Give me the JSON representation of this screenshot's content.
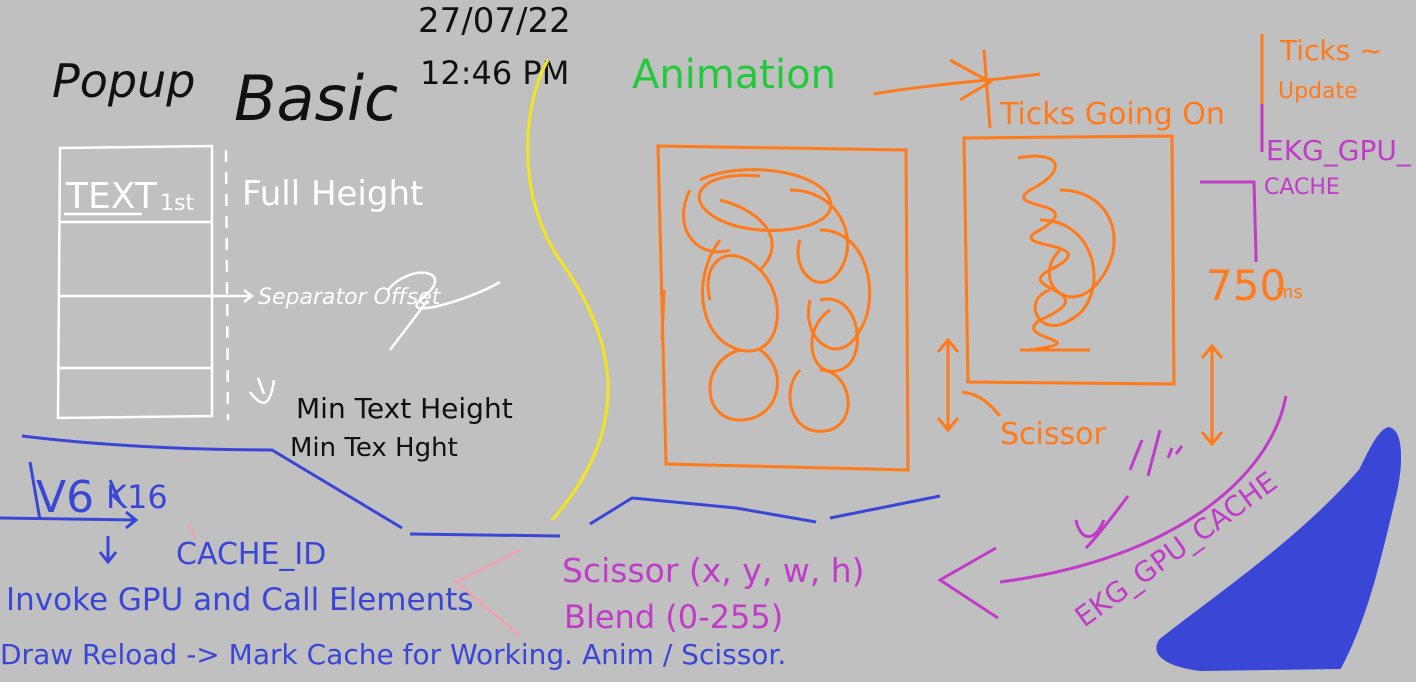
{
  "colors": {
    "background": "#c0c0c0",
    "black": "#111111",
    "white": "#ffffff",
    "yellow": "#f3e619",
    "green": "#22c93a",
    "orange": "#ff7a1a",
    "purple": "#c03cc8",
    "blue": "#3a47d6",
    "pink": "#f0a0b0"
  },
  "header": {
    "title_popup": "Popup",
    "title_basic": "Basic",
    "date": "27/07/22",
    "time": "12:46 PM"
  },
  "popup": {
    "text_label": "TEXT",
    "text_marker": "1st",
    "full_height": "Full Height",
    "separator_offset": "Separator Offset",
    "min_text_height_1": "Min Text Height",
    "min_text_height_2": "Min Tex Hght"
  },
  "animation": {
    "title": "Animation",
    "ticks_going_on": "Ticks Going On",
    "ticks_update_1": "Ticks ~",
    "ticks_update_2": "Update",
    "ekg_cache_1": "EKG_GPU_",
    "ekg_cache_2": "CACHE",
    "duration": "750",
    "duration_unit": "ms",
    "scissor_label": "Scissor",
    "ekg_cache_arc": "EKG_GPU_CACHE"
  },
  "bottom": {
    "v6_label": "V6",
    "v6_struck": "K16",
    "cache_id": "CACHE_ID",
    "invoke": "Invoke GPU and Call Elements",
    "draw_reload": "Draw Reload -> Mark Cache for Working. Anim / Scissor.",
    "scissor_fn": "Scissor (x, y, w, h)",
    "blend_fn": "Blend (0-255)"
  }
}
